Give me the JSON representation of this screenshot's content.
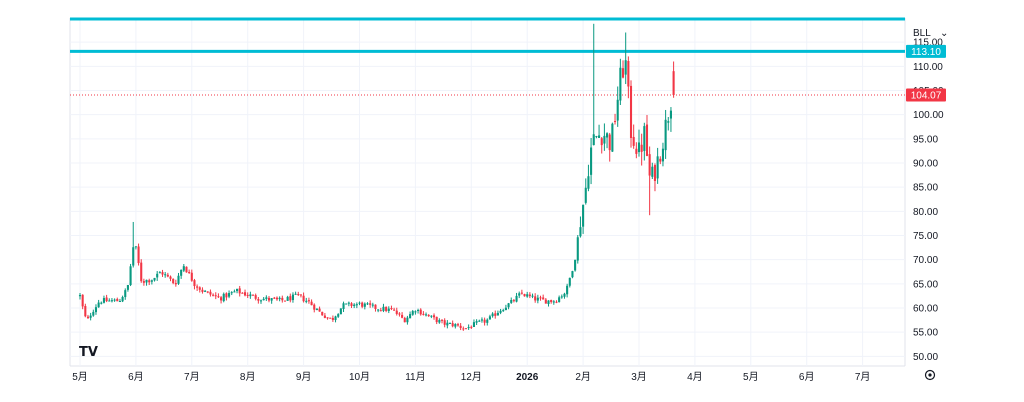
{
  "chart_data": {
    "type": "candlestick",
    "symbol": "BLL",
    "y_ticks": [
      50,
      55,
      60,
      65,
      70,
      75,
      80,
      85,
      90,
      95,
      100,
      105,
      110,
      115
    ],
    "y_tick_labels": [
      "50.00",
      "55.00",
      "60.00",
      "65.00",
      "70.00",
      "75.00",
      "80.00",
      "85.00",
      "90.00",
      "95.00",
      "100.00",
      "105.00",
      "110.00",
      "115.00"
    ],
    "ylim": [
      48,
      120
    ],
    "x_labels": [
      {
        "label": "5月",
        "month": 0,
        "bold": false
      },
      {
        "label": "6月",
        "month": 1,
        "bold": false
      },
      {
        "label": "7月",
        "month": 2,
        "bold": false
      },
      {
        "label": "8月",
        "month": 3,
        "bold": false
      },
      {
        "label": "9月",
        "month": 4,
        "bold": false
      },
      {
        "label": "10月",
        "month": 5,
        "bold": false
      },
      {
        "label": "11月",
        "month": 6,
        "bold": false
      },
      {
        "label": "12月",
        "month": 7,
        "bold": false
      },
      {
        "label": "2026",
        "month": 8,
        "bold": true
      },
      {
        "label": "2月",
        "month": 9,
        "bold": false
      },
      {
        "label": "3月",
        "month": 10,
        "bold": false
      },
      {
        "label": "4月",
        "month": 11,
        "bold": false
      },
      {
        "label": "5月",
        "month": 12,
        "bold": false
      },
      {
        "label": "6月",
        "month": 13,
        "bold": false
      },
      {
        "label": "7月",
        "month": 14,
        "bold": false
      }
    ],
    "horizontal_lines": [
      {
        "value": 113.1,
        "label": "113.10",
        "color": "#00bcd4"
      }
    ],
    "last_price": {
      "value": 104.07,
      "label": "104.07",
      "color": "#f23645"
    },
    "colors": {
      "up": "#089981",
      "down": "#f23645"
    },
    "anchors": [
      [
        0,
        62.5
      ],
      [
        0.05,
        60
      ],
      [
        0.12,
        57
      ],
      [
        0.2,
        59
      ],
      [
        0.35,
        61.5
      ],
      [
        0.5,
        61.5
      ],
      [
        0.7,
        61.5
      ],
      [
        0.85,
        64
      ],
      [
        0.92,
        70
      ],
      [
        0.97,
        74
      ],
      [
        1.02,
        71
      ],
      [
        1.1,
        65.5
      ],
      [
        1.3,
        66
      ],
      [
        1.45,
        67.5
      ],
      [
        1.7,
        65
      ],
      [
        1.85,
        69
      ],
      [
        2.05,
        65
      ],
      [
        2.2,
        63.5
      ],
      [
        2.5,
        62
      ],
      [
        2.8,
        63.5
      ],
      [
        3.2,
        62
      ],
      [
        3.6,
        61.5
      ],
      [
        3.9,
        62.5
      ],
      [
        4.1,
        61.2
      ],
      [
        4.3,
        59
      ],
      [
        4.5,
        57.5
      ],
      [
        4.7,
        60.5
      ],
      [
        5.0,
        60.8
      ],
      [
        5.3,
        60
      ],
      [
        5.6,
        59.5
      ],
      [
        5.8,
        57.5
      ],
      [
        6.0,
        59.8
      ],
      [
        6.2,
        58.5
      ],
      [
        6.5,
        56.8
      ],
      [
        6.7,
        56.5
      ],
      [
        6.9,
        55.8
      ],
      [
        7.1,
        56.8
      ],
      [
        7.3,
        57.5
      ],
      [
        7.5,
        59.5
      ],
      [
        7.7,
        61
      ],
      [
        7.9,
        63
      ],
      [
        8.1,
        62
      ],
      [
        8.3,
        61.5
      ],
      [
        8.5,
        61.5
      ],
      [
        8.7,
        63.5
      ],
      [
        8.85,
        70
      ],
      [
        8.95,
        78
      ],
      [
        9.05,
        85
      ],
      [
        9.12,
        92
      ],
      [
        9.2,
        95
      ],
      [
        9.35,
        96.5
      ],
      [
        9.5,
        94
      ],
      [
        9.65,
        106
      ],
      [
        9.75,
        112
      ],
      [
        9.85,
        97
      ],
      [
        10.0,
        92
      ],
      [
        10.1,
        96
      ],
      [
        10.2,
        86
      ],
      [
        10.3,
        89
      ],
      [
        10.45,
        96
      ],
      [
        10.6,
        105
      ],
      [
        10.65,
        106.3
      ]
    ]
  }
}
